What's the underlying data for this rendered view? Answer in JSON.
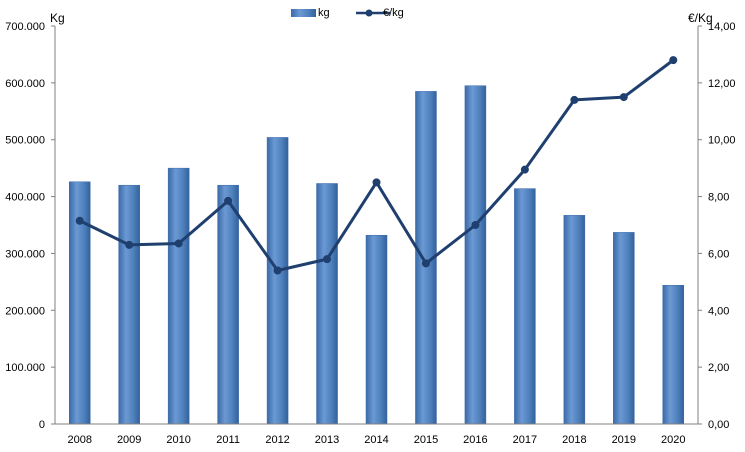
{
  "chart_data": {
    "type": "bar",
    "categories": [
      "2008",
      "2009",
      "2010",
      "2011",
      "2012",
      "2013",
      "2014",
      "2015",
      "2016",
      "2017",
      "2018",
      "2019",
      "2020"
    ],
    "series": [
      {
        "name": "kg",
        "type": "bar",
        "axis": "left",
        "color": "#4f81bd",
        "values": [
          426000,
          420000,
          450000,
          420000,
          504000,
          423000,
          332000,
          585000,
          595000,
          414000,
          367000,
          337000,
          244000
        ]
      },
      {
        "name": "€/kg",
        "type": "line",
        "axis": "right",
        "color": "#1f3f6e",
        "values": [
          7.15,
          6.3,
          6.35,
          7.85,
          5.4,
          5.8,
          8.5,
          5.65,
          7.0,
          8.95,
          11.4,
          11.5,
          12.8
        ]
      }
    ],
    "left_axis": {
      "label": "Kg",
      "ylim": [
        0,
        700000
      ],
      "ticks": [
        "0",
        "100.000",
        "200.000",
        "300.000",
        "400.000",
        "500.000",
        "600.000",
        "700.000"
      ]
    },
    "right_axis": {
      "label": "€/Kg",
      "ylim": [
        0,
        14
      ],
      "ticks": [
        "0,00",
        "2,00",
        "4,00",
        "6,00",
        "8,00",
        "10,00",
        "12,00",
        "14,00"
      ]
    },
    "legend": {
      "placement": "top-center",
      "entries": [
        "kg",
        "€/kg"
      ]
    },
    "grid": false
  }
}
